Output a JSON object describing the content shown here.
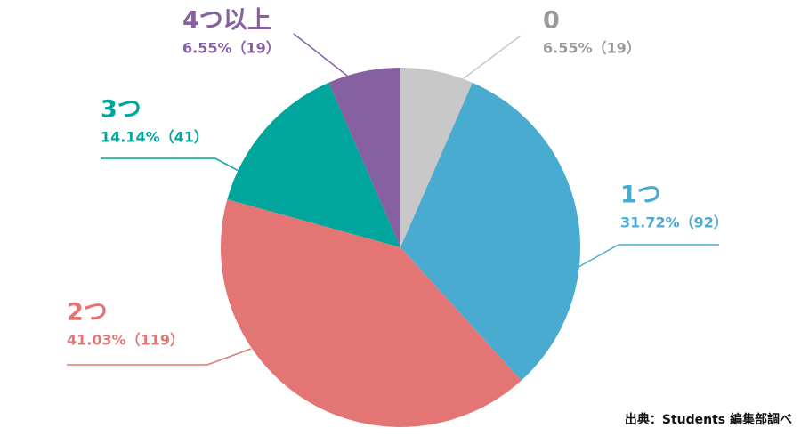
{
  "chart_data": {
    "type": "pie",
    "categories": [
      "0",
      "1つ",
      "2つ",
      "3つ",
      "4つ以上"
    ],
    "values": [
      6.55,
      31.72,
      41.03,
      14.14,
      6.55
    ],
    "value_labels": [
      "6.55%（19）",
      "31.72%（92）",
      "41.03%（119）",
      "14.14%（41）",
      "6.55%（19）"
    ],
    "colors": [
      "#c8c8c8",
      "#4aabd1",
      "#e37674",
      "#00a59b",
      "#8660a0"
    ],
    "label_colors": [
      "#9a9a9a",
      "#4aabd1",
      "#e37674",
      "#00a59b",
      "#8660a0"
    ],
    "source": "出典：Students 編集部調べ"
  }
}
